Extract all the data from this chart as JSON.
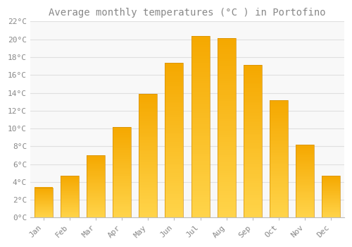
{
  "title": "Average monthly temperatures (°C ) in Portofino",
  "months": [
    "Jan",
    "Feb",
    "Mar",
    "Apr",
    "May",
    "Jun",
    "Jul",
    "Aug",
    "Sep",
    "Oct",
    "Nov",
    "Dec"
  ],
  "temperatures": [
    3.4,
    4.7,
    7.0,
    10.2,
    13.9,
    17.4,
    20.4,
    20.1,
    17.1,
    13.2,
    8.2,
    4.7
  ],
  "bar_color_bottom": "#FFD44A",
  "bar_color_top": "#F5A800",
  "background_color": "#FFFFFF",
  "plot_bg_color": "#F8F8F8",
  "grid_color": "#E0E0E0",
  "text_color": "#888888",
  "spine_color": "#BBBBBB",
  "ylim": [
    0,
    22
  ],
  "yticks": [
    0,
    2,
    4,
    6,
    8,
    10,
    12,
    14,
    16,
    18,
    20,
    22
  ],
  "ytick_labels": [
    "0°C",
    "2°C",
    "4°C",
    "6°C",
    "8°C",
    "10°C",
    "12°C",
    "14°C",
    "16°C",
    "18°C",
    "20°C",
    "22°C"
  ],
  "title_fontsize": 10,
  "tick_fontsize": 8,
  "font_family": "monospace",
  "bar_width": 0.7,
  "figsize": [
    5.0,
    3.5
  ],
  "dpi": 100
}
